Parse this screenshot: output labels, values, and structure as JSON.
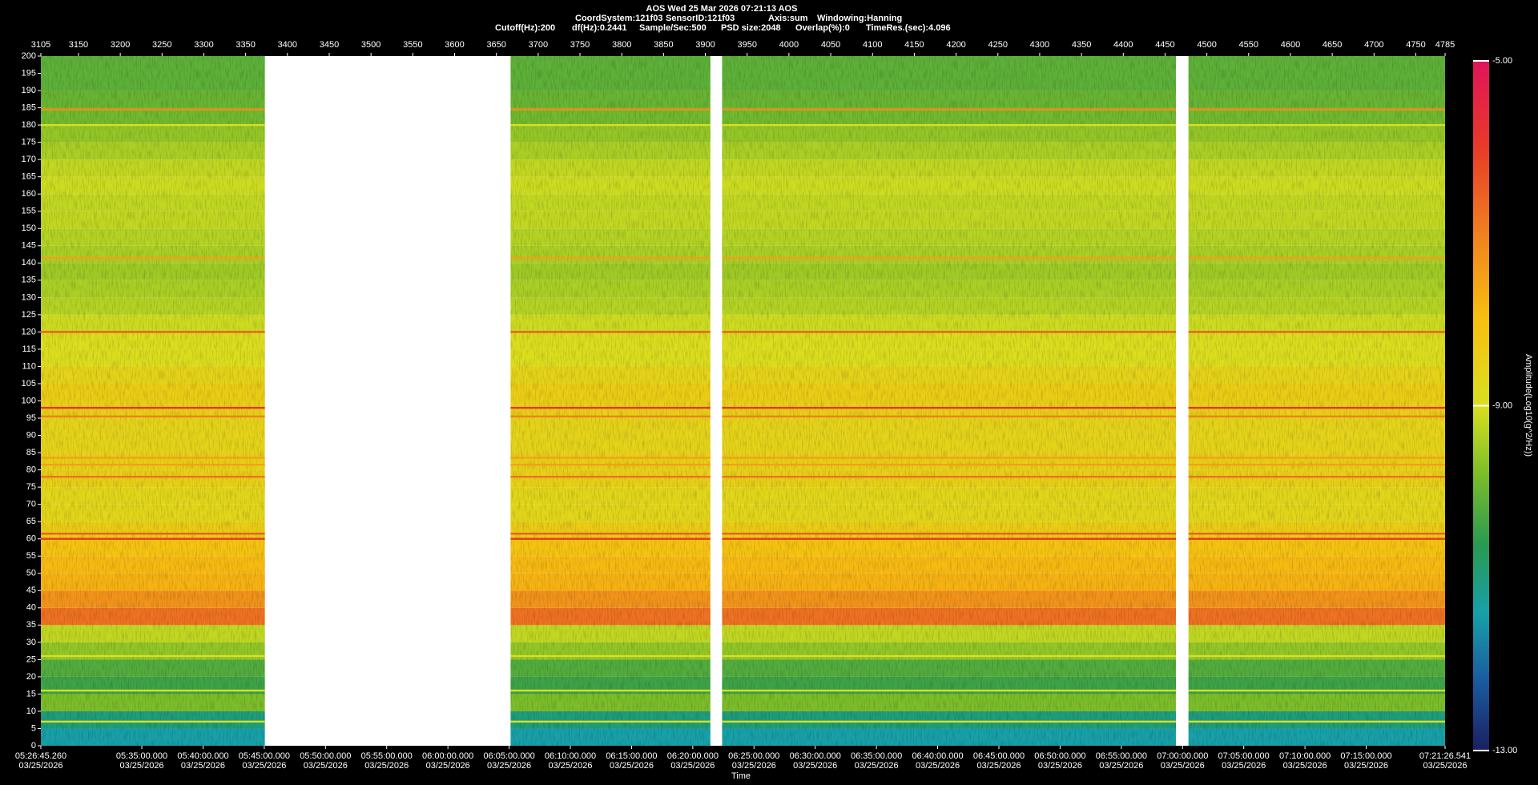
{
  "chart_data": {
    "type": "spectrogram",
    "title": "AOS  Wed 25 Mar 2026 07:21:13  AOS",
    "info": [
      [
        "CoordSystem:121f03",
        "SensorID:121f03",
        "Axis:sum",
        "Windowing:Hanning"
      ],
      [
        "Cutoff(Hz):200",
        "df(Hz):0.2441",
        "Sample/Sec:500",
        "PSD size:2048",
        "Overlap(%):0",
        "TimeRes.(sec):4.096"
      ]
    ],
    "x_label": "Time",
    "colorbar_label": "Amplitude(Log10(g^2/Hz))",
    "xlim": [
      3105,
      4785
    ],
    "xticks": [
      3105,
      3150,
      3200,
      3250,
      3300,
      3350,
      3400,
      3450,
      3500,
      3550,
      3600,
      3650,
      3700,
      3750,
      3800,
      3850,
      3900,
      3950,
      4000,
      4050,
      4100,
      4150,
      4200,
      4250,
      4300,
      4350,
      4400,
      4450,
      4500,
      4550,
      4600,
      4650,
      4700,
      4750,
      4785
    ],
    "time_lim": [
      "2026-03-25T05:26:45.260",
      "2026-03-25T07:21:26.541"
    ],
    "time_ticks": [
      {
        "value": "2026-03-25T05:26:45.260",
        "label": "05:26:45.260",
        "date": "03/25/2026"
      },
      {
        "value": "2026-03-25T05:35:00.000",
        "label": "05:35:00.000",
        "date": "03/25/2026"
      },
      {
        "value": "2026-03-25T05:40:00.000",
        "label": "05:40:00.000",
        "date": "03/25/2026"
      },
      {
        "value": "2026-03-25T05:45:00.000",
        "label": "05:45:00.000",
        "date": "03/25/2026"
      },
      {
        "value": "2026-03-25T05:50:00.000",
        "label": "05:50:00.000",
        "date": "03/25/2026"
      },
      {
        "value": "2026-03-25T05:55:00.000",
        "label": "05:55:00.000",
        "date": "03/25/2026"
      },
      {
        "value": "2026-03-25T06:00:00.000",
        "label": "06:00:00.000",
        "date": "03/25/2026"
      },
      {
        "value": "2026-03-25T06:05:00.000",
        "label": "06:05:00.000",
        "date": "03/25/2026"
      },
      {
        "value": "2026-03-25T06:10:00.000",
        "label": "06:10:00.000",
        "date": "03/25/2026"
      },
      {
        "value": "2026-03-25T06:15:00.000",
        "label": "06:15:00.000",
        "date": "03/25/2026"
      },
      {
        "value": "2026-03-25T06:20:00.000",
        "label": "06:20:00.000",
        "date": "03/25/2026"
      },
      {
        "value": "2026-03-25T06:25:00.000",
        "label": "06:25:00.000",
        "date": "03/25/2026"
      },
      {
        "value": "2026-03-25T06:30:00.000",
        "label": "06:30:00.000",
        "date": "03/25/2026"
      },
      {
        "value": "2026-03-25T06:35:00.000",
        "label": "06:35:00.000",
        "date": "03/25/2026"
      },
      {
        "value": "2026-03-25T06:40:00.000",
        "label": "06:40:00.000",
        "date": "03/25/2026"
      },
      {
        "value": "2026-03-25T06:45:00.000",
        "label": "06:45:00.000",
        "date": "03/25/2026"
      },
      {
        "value": "2026-03-25T06:50:00.000",
        "label": "06:50:00.000",
        "date": "03/25/2026"
      },
      {
        "value": "2026-03-25T06:55:00.000",
        "label": "06:55:00.000",
        "date": "03/25/2026"
      },
      {
        "value": "2026-03-25T07:00:00.000",
        "label": "07:00:00.000",
        "date": "03/25/2026"
      },
      {
        "value": "2026-03-25T07:05:00.000",
        "label": "07:05:00.000",
        "date": "03/25/2026"
      },
      {
        "value": "2026-03-25T07:10:00.000",
        "label": "07:10:00.000",
        "date": "03/25/2026"
      },
      {
        "value": "2026-03-25T07:15:00.000",
        "label": "07:15:00.000",
        "date": "03/25/2026"
      },
      {
        "value": "2026-03-25T07:21:26.541",
        "label": "07:21:26.541",
        "date": "03/25/2026"
      }
    ],
    "ylim": [
      0,
      200
    ],
    "yticks": [
      0,
      5,
      10,
      15,
      20,
      25,
      30,
      35,
      40,
      45,
      50,
      55,
      60,
      65,
      70,
      75,
      80,
      85,
      90,
      95,
      100,
      105,
      110,
      115,
      120,
      125,
      130,
      135,
      140,
      145,
      150,
      155,
      160,
      165,
      170,
      175,
      180,
      185,
      190,
      195,
      200
    ],
    "segments": [
      [
        3105,
        3373
      ],
      [
        3667,
        3906
      ],
      [
        3920,
        4463
      ],
      [
        4478,
        4785
      ]
    ],
    "freq_bins": [
      0,
      5,
      10,
      15,
      20,
      25,
      30,
      35,
      40,
      45,
      50,
      55,
      60,
      65,
      70,
      75,
      80,
      85,
      90,
      95,
      100,
      105,
      110,
      115,
      120,
      125,
      130,
      135,
      140,
      145,
      150,
      155,
      160,
      165,
      170,
      175,
      180,
      185,
      190,
      195,
      200
    ],
    "amplitude": [
      -11.4,
      -11.0,
      -9.8,
      -10.4,
      -10.2,
      -9.6,
      -9.2,
      -6.8,
      -7.3,
      -7.8,
      -7.9,
      -8.1,
      -8.4,
      -8.7,
      -8.7,
      -8.5,
      -8.5,
      -8.6,
      -8.6,
      -8.5,
      -8.4,
      -8.6,
      -8.9,
      -8.9,
      -9.1,
      -9.3,
      -9.4,
      -9.5,
      -9.4,
      -9.3,
      -9.2,
      -9.2,
      -9.1,
      -9.2,
      -9.4,
      -9.6,
      -9.9,
      -10.0,
      -10.1,
      -10.1
    ],
    "tonal_lines": [
      {
        "freq": 184.5,
        "amplitude": -7.2
      },
      {
        "freq": 180,
        "amplitude": -9.0
      },
      {
        "freq": 141.5,
        "amplitude": -7.5
      },
      {
        "freq": 120,
        "amplitude": -6.5
      },
      {
        "freq": 98,
        "amplitude": -5.8
      },
      {
        "freq": 95.5,
        "amplitude": -7.0
      },
      {
        "freq": 83.5,
        "amplitude": -7.5
      },
      {
        "freq": 81.5,
        "amplitude": -7.5
      },
      {
        "freq": 78,
        "amplitude": -6.8
      },
      {
        "freq": 61.5,
        "amplitude": -6.5
      },
      {
        "freq": 60,
        "amplitude": -6.0
      },
      {
        "freq": 26,
        "amplitude": -9.0
      },
      {
        "freq": 16,
        "amplitude": -9.0
      },
      {
        "freq": 7,
        "amplitude": -9.0
      }
    ],
    "clim": [
      -13,
      -5
    ],
    "cticks": [
      {
        "value": -13,
        "label": "-13.00"
      },
      {
        "value": -9,
        "label": "-9.00"
      },
      {
        "value": -5,
        "label": "-5.00"
      }
    ],
    "colormap": [
      {
        "value": -13,
        "color": "#1a2060"
      },
      {
        "value": -12.2,
        "color": "#1a5aa0"
      },
      {
        "value": -11.4,
        "color": "#18a0a8"
      },
      {
        "value": -10.6,
        "color": "#2a9a50"
      },
      {
        "value": -9.8,
        "color": "#7cbd2a"
      },
      {
        "value": -9,
        "color": "#d8e020"
      },
      {
        "value": -8,
        "color": "#f8c010"
      },
      {
        "value": -7,
        "color": "#f08020"
      },
      {
        "value": -6,
        "color": "#e83a28"
      },
      {
        "value": -5,
        "color": "#e0145a"
      }
    ]
  }
}
